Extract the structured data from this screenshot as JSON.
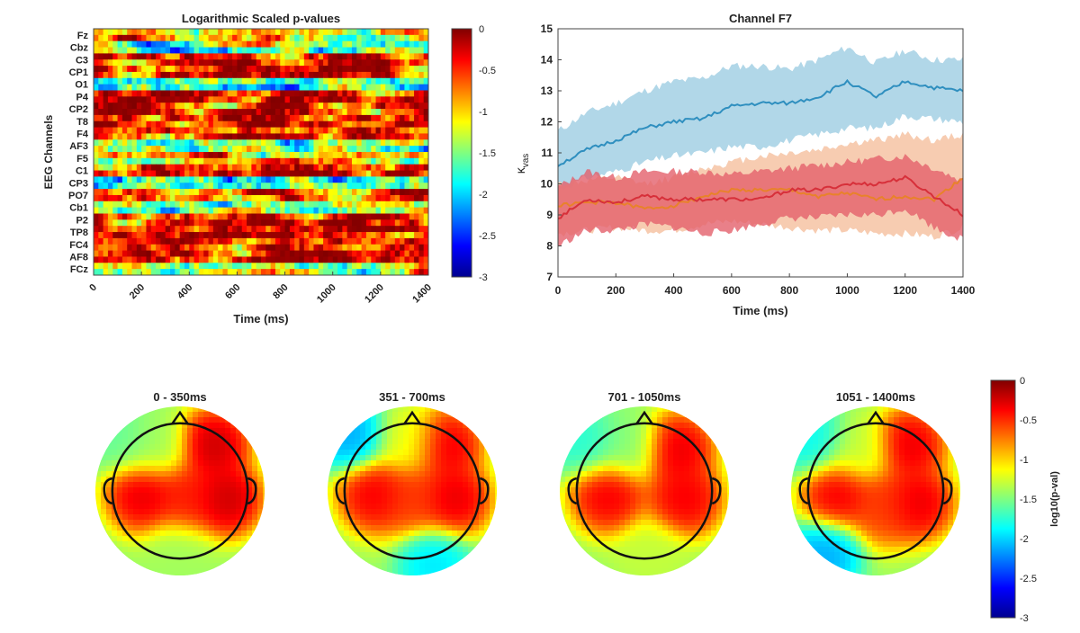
{
  "chart_data": [
    {
      "type": "heatmap",
      "title": "Logarithmic Scaled p-values",
      "xlabel": "Time (ms)",
      "ylabel": "EEG Channels",
      "xlim": [
        0,
        1400
      ],
      "x_ticks": [
        "0",
        "200",
        "400",
        "600",
        "800",
        "1000",
        "1200",
        "1400"
      ],
      "y_tick_labels": [
        "Fz",
        "Cbz",
        "C3",
        "CP1",
        "O1",
        "P4",
        "CP2",
        "T8",
        "F4",
        "AF3",
        "F5",
        "C1",
        "CP3",
        "PO7",
        "Cb1",
        "P2",
        "TP8",
        "FC4",
        "AF8",
        "FCz"
      ],
      "colorbar": {
        "range": [
          -3,
          0
        ],
        "ticks": [
          "0",
          "-0.5",
          "-1",
          "-1.5",
          "-2",
          "-2.5",
          "-3"
        ],
        "colormap": "jet"
      },
      "row_profiles": [
        -0.9,
        -1.6,
        -0.25,
        -0.2,
        -1.7,
        -0.4,
        -0.3,
        -0.35,
        -0.45,
        -1.5,
        -0.9,
        -0.3,
        -1.8,
        -0.7,
        -1.5,
        -0.25,
        -0.3,
        -0.4,
        -0.25,
        -1.3
      ]
    },
    {
      "type": "line",
      "title": "Channel F7",
      "xlabel": "Time (ms)",
      "ylabel": "κ",
      "ylabel_sub": "vas",
      "xlim": [
        0,
        1400
      ],
      "ylim": [
        7,
        15
      ],
      "x_ticks": [
        "0",
        "200",
        "400",
        "600",
        "800",
        "1000",
        "1200",
        "1400"
      ],
      "y_ticks": [
        "7",
        "8",
        "9",
        "10",
        "11",
        "12",
        "13",
        "14",
        "15"
      ],
      "x": [
        0,
        100,
        200,
        300,
        400,
        500,
        600,
        700,
        800,
        900,
        1000,
        1100,
        1200,
        1300,
        1400
      ],
      "series": [
        {
          "color": "#2f8fbf",
          "band_color": "#a9d3e6",
          "values": [
            10.6,
            11.1,
            11.4,
            11.8,
            12.0,
            12.1,
            12.5,
            12.6,
            12.6,
            12.8,
            13.3,
            12.8,
            13.3,
            13.1,
            13.0
          ],
          "upper": [
            11.7,
            12.3,
            12.6,
            13.0,
            13.3,
            13.4,
            13.8,
            13.8,
            13.7,
            14.0,
            14.4,
            13.9,
            14.3,
            14.0,
            14.0
          ],
          "lower": [
            9.8,
            10.2,
            10.4,
            10.7,
            10.9,
            11.0,
            11.2,
            11.2,
            11.4,
            11.6,
            11.8,
            11.8,
            12.2,
            12.1,
            12.0
          ]
        },
        {
          "color": "#e8822a",
          "band_color": "#f6c6a8",
          "values": [
            9.3,
            9.4,
            9.4,
            9.2,
            9.3,
            9.6,
            9.8,
            9.8,
            9.8,
            9.6,
            9.7,
            9.5,
            9.6,
            9.5,
            10.2
          ],
          "upper": [
            10.0,
            10.1,
            10.2,
            10.0,
            10.2,
            10.5,
            10.7,
            10.9,
            11.0,
            11.1,
            11.3,
            11.4,
            11.6,
            11.4,
            11.6
          ],
          "lower": [
            8.4,
            8.5,
            8.6,
            8.5,
            8.5,
            8.7,
            8.8,
            8.7,
            8.6,
            8.5,
            8.5,
            8.4,
            8.4,
            8.3,
            8.6
          ]
        },
        {
          "color": "#d7303a",
          "band_color": "#e4606c",
          "values": [
            8.9,
            9.5,
            9.4,
            9.6,
            9.5,
            9.5,
            9.5,
            9.5,
            9.8,
            9.8,
            10.0,
            10.0,
            10.2,
            9.6,
            9.0
          ],
          "upper": [
            9.9,
            10.4,
            10.2,
            10.4,
            10.4,
            10.4,
            10.3,
            10.4,
            10.5,
            10.6,
            10.7,
            10.8,
            10.9,
            10.5,
            10.1
          ],
          "lower": [
            8.0,
            8.5,
            8.5,
            8.7,
            8.6,
            8.4,
            8.5,
            8.7,
            8.9,
            8.9,
            9.0,
            9.0,
            9.2,
            8.6,
            8.2
          ]
        }
      ]
    },
    {
      "type": "topoplot",
      "panels": [
        {
          "title": "0 - 350ms",
          "hotspots": [
            [
              -0.45,
              0.05,
              -0.2
            ],
            [
              0.4,
              -0.55,
              -0.1
            ],
            [
              0.55,
              0.1,
              -0.1
            ],
            [
              0.1,
              0.1,
              -0.4
            ],
            [
              -0.3,
              -0.55,
              -1.4
            ],
            [
              0.0,
              0.75,
              -1.4
            ],
            [
              -0.7,
              -0.6,
              -1.6
            ]
          ]
        },
        {
          "title": "351 - 700ms",
          "hotspots": [
            [
              -0.45,
              0.05,
              -0.25
            ],
            [
              0.4,
              -0.55,
              -0.2
            ],
            [
              0.5,
              0.1,
              -0.2
            ],
            [
              -0.05,
              -0.6,
              -1.2
            ],
            [
              0.25,
              0.85,
              -2.0
            ],
            [
              -0.72,
              -0.65,
              -2.2
            ],
            [
              0.0,
              0.1,
              -0.5
            ]
          ]
        },
        {
          "title": "701 - 1050ms",
          "hotspots": [
            [
              -0.45,
              0.05,
              -0.25
            ],
            [
              0.4,
              -0.5,
              -0.2
            ],
            [
              0.5,
              0.1,
              -0.25
            ],
            [
              -0.2,
              -0.55,
              -1.5
            ],
            [
              0.1,
              0.8,
              -1.3
            ],
            [
              -0.7,
              -0.55,
              -1.8
            ]
          ]
        },
        {
          "title": "1051 - 1400ms",
          "hotspots": [
            [
              -0.45,
              0.05,
              -0.25
            ],
            [
              0.4,
              -0.55,
              -0.2
            ],
            [
              0.5,
              0.15,
              -0.2
            ],
            [
              -0.2,
              -0.5,
              -1.3
            ],
            [
              -0.6,
              0.75,
              -2.2
            ],
            [
              -0.75,
              -0.6,
              -1.9
            ],
            [
              0.1,
              0.2,
              -0.5
            ]
          ]
        }
      ],
      "colorbar": {
        "label": "log10(p-val)",
        "range": [
          -3,
          0
        ],
        "ticks": [
          "0",
          "-0.5",
          "-1",
          "-1.5",
          "-2",
          "-2.5",
          "-3"
        ],
        "colormap": "jet"
      }
    }
  ]
}
